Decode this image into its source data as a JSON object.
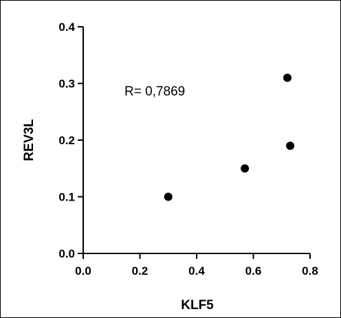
{
  "chart_data": {
    "type": "scatter",
    "title": "",
    "xlabel": "KLF5",
    "ylabel": "REV3L",
    "xlim": [
      0.0,
      0.8
    ],
    "ylim": [
      0.0,
      0.4
    ],
    "x_ticks": [
      0.0,
      0.2,
      0.4,
      0.6,
      0.8
    ],
    "y_ticks": [
      0.0,
      0.1,
      0.2,
      0.3,
      0.4
    ],
    "x_tick_labels": [
      "0.0",
      "0.2",
      "0.4",
      "0.6",
      "0.8"
    ],
    "y_tick_labels": [
      "0.0",
      "0.1",
      "0.2",
      "0.3",
      "0.4"
    ],
    "points": [
      {
        "x": 0.3,
        "y": 0.1
      },
      {
        "x": 0.57,
        "y": 0.15
      },
      {
        "x": 0.72,
        "y": 0.31
      },
      {
        "x": 0.73,
        "y": 0.19
      }
    ],
    "annotation": "R= 0,7869",
    "grid": false,
    "legend": "none",
    "marker_color": "#000000",
    "axis_color": "#000000"
  }
}
